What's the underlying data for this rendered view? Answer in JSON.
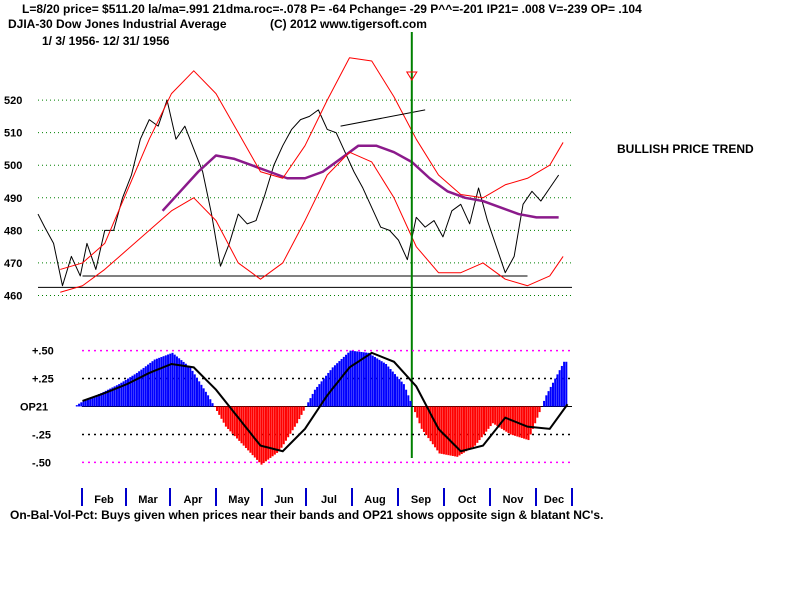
{
  "header": {
    "line1": "L=8/20  price= $511.20  la/ma=.991 21dma.roc=-.078 P= -64 Pchange= -29 P^^=-201 IP21= .008 V=-239 OP= .104",
    "line2_left": "DJIA-30  Dow Jones Industrial Average",
    "line2_right": "(C) 2012 www.tigersoft.com",
    "line3": "1/ 3/ 1956- 12/ 31/ 1956"
  },
  "annotation": "BULLISH PRICE TREND",
  "footer": "On-Bal-Vol-Pct: Buys given when prices near their bands and OP21 shows opposite sign & blatant NC's.",
  "colors": {
    "price": "#000000",
    "bands": "#ff0000",
    "ma": "#8b1a8b",
    "grid": "#008000",
    "signal": "#008000",
    "op_positive": "#0000ff",
    "op_negative": "#ff0000",
    "op_levels_outer": "#ff00ff",
    "op_levels_inner": "#000000"
  },
  "chart_data": [
    {
      "type": "line",
      "title": "DJIA-30 Dow Jones Industrial Average",
      "ylim": [
        458,
        536
      ],
      "yticks": [
        460,
        470,
        480,
        490,
        500,
        510,
        520
      ],
      "months": [
        "Feb",
        "Mar",
        "Apr",
        "May",
        "Jun",
        "Jul",
        "Aug",
        "Sep",
        "Oct",
        "Nov",
        "Dec"
      ],
      "x_range": [
        0,
        12
      ],
      "series": [
        {
          "name": "DJIA close",
          "x": [
            0.0,
            0.15,
            0.35,
            0.55,
            0.75,
            0.95,
            1.1,
            1.3,
            1.5,
            1.7,
            1.9,
            2.1,
            2.3,
            2.5,
            2.7,
            2.9,
            3.1,
            3.3,
            3.5,
            3.7,
            3.9,
            4.1,
            4.3,
            4.5,
            4.7,
            4.9,
            5.1,
            5.3,
            5.5,
            5.7,
            5.9,
            6.1,
            6.3,
            6.5,
            6.7,
            6.9,
            7.1,
            7.3,
            7.5,
            7.7,
            7.9,
            8.1,
            8.3,
            8.5,
            8.7,
            8.9,
            9.1,
            9.3,
            9.5,
            9.7,
            9.9,
            10.1,
            10.3,
            10.5,
            10.7,
            10.9,
            11.1,
            11.3,
            11.5,
            11.7
          ],
          "values": [
            485,
            481,
            476,
            463,
            472,
            466,
            476,
            468,
            480,
            480,
            490,
            497,
            508,
            514,
            512,
            520,
            508,
            512,
            505,
            498,
            485,
            469,
            476,
            485,
            482,
            483,
            491,
            500,
            506,
            511,
            514,
            515,
            517,
            511,
            510,
            504,
            498,
            493,
            487,
            481,
            480,
            477,
            471,
            484,
            481,
            483,
            478,
            486,
            488,
            482,
            493,
            483,
            475,
            467,
            472,
            488,
            492,
            489,
            493,
            497
          ]
        },
        {
          "name": "21-day moving average",
          "x": [
            2.8,
            3.2,
            3.6,
            4.0,
            4.4,
            4.8,
            5.2,
            5.6,
            6.0,
            6.4,
            6.8,
            7.2,
            7.6,
            8.0,
            8.4,
            8.8,
            9.2,
            9.6,
            10.0,
            10.4,
            10.8,
            11.2,
            11.7
          ],
          "values": [
            486,
            492,
            498,
            503,
            502,
            500,
            498,
            496,
            496,
            498,
            502,
            506,
            506,
            504,
            501,
            496,
            492,
            490,
            489,
            487,
            485,
            484,
            484
          ]
        },
        {
          "name": "Upper band",
          "x": [
            0.5,
            1.0,
            1.5,
            2.0,
            2.5,
            3.0,
            3.5,
            4.0,
            4.5,
            5.0,
            5.5,
            6.0,
            6.5,
            7.0,
            7.5,
            8.0,
            8.5,
            9.0,
            9.5,
            10.0,
            10.5,
            11.0,
            11.5,
            11.8
          ],
          "values": [
            468,
            470,
            476,
            492,
            508,
            522,
            529,
            522,
            510,
            498,
            496,
            506,
            520,
            533,
            532,
            521,
            508,
            497,
            491,
            490,
            494,
            496,
            500,
            507
          ]
        },
        {
          "name": "Lower band",
          "x": [
            0.5,
            1.0,
            1.5,
            2.0,
            2.5,
            3.0,
            3.5,
            4.0,
            4.5,
            5.0,
            5.5,
            6.0,
            6.5,
            7.0,
            7.5,
            8.0,
            8.5,
            9.0,
            9.5,
            10.0,
            10.5,
            11.0,
            11.5,
            11.8
          ],
          "values": [
            461,
            463,
            468,
            474,
            480,
            486,
            490,
            483,
            470,
            465,
            470,
            483,
            497,
            504,
            501,
            490,
            475,
            467,
            467,
            470,
            465,
            463,
            466,
            472
          ]
        }
      ],
      "support_lines": [
        {
          "x": [
            1.0,
            11.0
          ],
          "values": [
            466,
            466
          ]
        },
        {
          "x": [
            0.0,
            12.0
          ],
          "values": [
            462.5,
            462.5
          ]
        }
      ],
      "trendline": {
        "x": [
          6.8,
          8.7
        ],
        "values": [
          512,
          517
        ]
      },
      "signal_x": 8.4
    },
    {
      "type": "bar",
      "title": "OP21",
      "ylabel": "OP21",
      "ylim": [
        -0.55,
        0.55
      ],
      "levels": [
        0.5,
        0.25,
        -0.25,
        -0.5
      ],
      "level_labels": [
        "+.50",
        "+.25",
        "-.25",
        "-.50"
      ],
      "series": [
        {
          "name": "OP21",
          "x": [
            0,
            0.6,
            1.0,
            1.4,
            1.8,
            2.2,
            2.6,
            3.0,
            3.4,
            3.8,
            4.2,
            4.6,
            5.0,
            5.4,
            5.8,
            6.2,
            6.6,
            7.0,
            7.4,
            7.8,
            8.2,
            8.6,
            9.0,
            9.4,
            9.8,
            10.2,
            10.6,
            11.0,
            11.4,
            11.8
          ],
          "values": [
            -0.08,
            -0.05,
            0.05,
            0.12,
            0.2,
            0.3,
            0.42,
            0.48,
            0.35,
            0.1,
            -0.18,
            -0.35,
            -0.52,
            -0.4,
            -0.15,
            0.15,
            0.35,
            0.5,
            0.48,
            0.38,
            0.2,
            -0.2,
            -0.42,
            -0.45,
            -0.35,
            -0.15,
            -0.25,
            -0.3,
            0.1,
            0.4
          ]
        },
        {
          "name": "OP21 moving average",
          "x": [
            1.0,
            1.5,
            2.0,
            2.5,
            3.0,
            3.5,
            4.0,
            4.5,
            5.0,
            5.5,
            6.0,
            6.5,
            7.0,
            7.5,
            8.0,
            8.5,
            9.0,
            9.5,
            10.0,
            10.5,
            11.0,
            11.5,
            11.9
          ],
          "values": [
            0.05,
            0.12,
            0.2,
            0.3,
            0.38,
            0.35,
            0.15,
            -0.1,
            -0.35,
            -0.4,
            -0.2,
            0.1,
            0.35,
            0.48,
            0.4,
            0.18,
            -0.2,
            -0.4,
            -0.35,
            -0.1,
            -0.18,
            -0.2,
            0.02
          ]
        }
      ]
    }
  ]
}
